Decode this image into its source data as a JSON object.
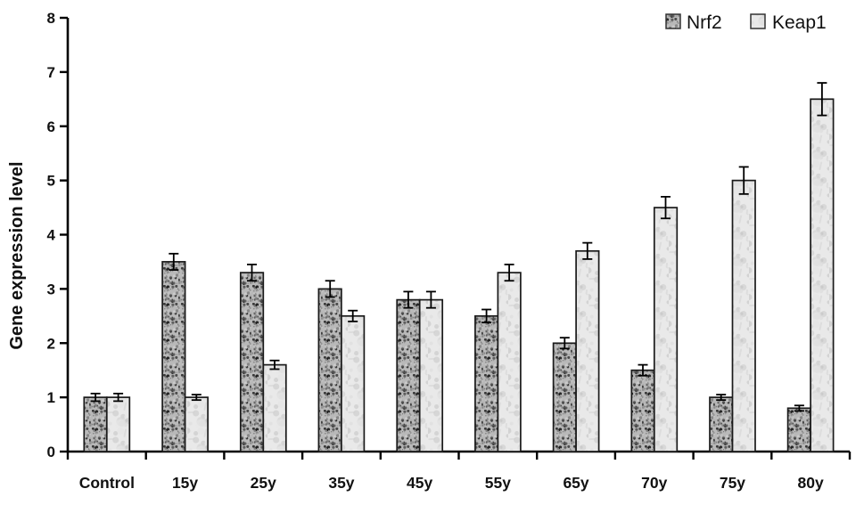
{
  "figure": {
    "background": "#ffffff",
    "axis_color": "#000000",
    "bar_outline": "#1a1a1a"
  },
  "legend": {
    "position": "top-right",
    "items": [
      {
        "label": "Nrf2",
        "swatch": "dark-speckle-texture"
      },
      {
        "label": "Keap1",
        "swatch": "light-marble-texture"
      }
    ]
  },
  "chart_data": {
    "type": "bar",
    "title": "",
    "xlabel": "",
    "ylabel": "Gene expression level",
    "ylim": [
      0,
      8
    ],
    "yticks": [
      0,
      1,
      2,
      3,
      4,
      5,
      6,
      7,
      8
    ],
    "grid": false,
    "legend_position": "top-right",
    "categories": [
      "Control",
      "15y",
      "25y",
      "35y",
      "45y",
      "55y",
      "65y",
      "70y",
      "75y",
      "80y"
    ],
    "series": [
      {
        "name": "Nrf2",
        "base_fill": "#b9b9b9",
        "texture": "speckle",
        "values": [
          1.0,
          3.5,
          3.3,
          3.0,
          2.8,
          2.5,
          2.0,
          1.5,
          1.0,
          0.8
        ],
        "errors": [
          0.07,
          0.15,
          0.15,
          0.15,
          0.15,
          0.12,
          0.1,
          0.1,
          0.05,
          0.05
        ]
      },
      {
        "name": "Keap1",
        "base_fill": "#e9e9e9",
        "texture": "marble",
        "values": [
          1.0,
          1.0,
          1.6,
          2.5,
          2.8,
          3.3,
          3.7,
          4.5,
          5.0,
          6.5
        ],
        "errors": [
          0.07,
          0.05,
          0.08,
          0.1,
          0.15,
          0.15,
          0.15,
          0.2,
          0.25,
          0.3
        ]
      }
    ]
  }
}
